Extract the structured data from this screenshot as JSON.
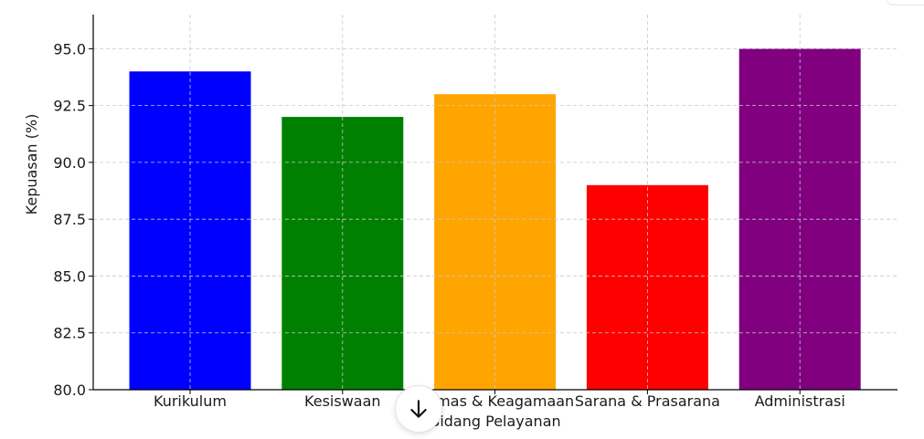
{
  "chart_data": {
    "type": "bar",
    "title": "",
    "xlabel": "Bidang Pelayanan",
    "ylabel": "Kepuasan (%)",
    "categories": [
      "Kurikulum",
      "Kesiswaan",
      "Humas & Keagamaan",
      "Sarana & Prasarana",
      "Administrasi"
    ],
    "values": [
      94,
      92,
      93,
      89,
      95
    ],
    "colors": [
      "#0000ff",
      "#008000",
      "#ffa500",
      "#ff0000",
      "#800080"
    ],
    "ylim": [
      80,
      96.5
    ],
    "yticks": [
      "80.0",
      "82.5",
      "85.0",
      "87.5",
      "90.0",
      "92.5",
      "95.0"
    ],
    "grid": true,
    "legend": "none"
  },
  "ui": {
    "scroll_button_icon": "arrow-down-icon"
  }
}
